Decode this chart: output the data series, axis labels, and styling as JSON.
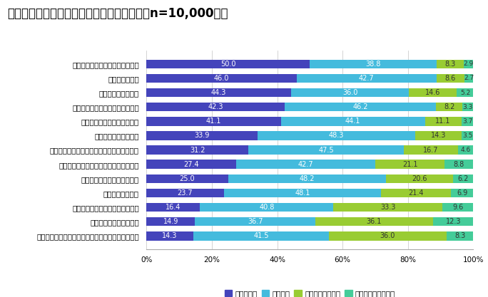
{
  "title": "図表　仕事を選択する際に重要視する観点（n=10,000人）",
  "categories": [
    "安定していて長く続けられること",
    "収入が多いこと",
    "自宅から通えること",
    "自分のやりたいことができること",
    "福利厚生が充実していること",
    "自由な時間が多いこと",
    "自分が身につけた知識や技術が活かせること",
    "子育て、介護等との両立がしやすいこと",
    "能力を高める機会があること",
    "人の役に立つこと",
    "社会的評価の高い仕事であること",
    "実力主義で儲かれること",
    "特別に指示されずに、自分の責任で決められること"
  ],
  "series": {
    "とても重要": [
      50.0,
      46.0,
      44.3,
      42.3,
      41.1,
      33.9,
      31.2,
      27.4,
      25.0,
      23.7,
      16.4,
      14.9,
      14.3
    ],
    "まあ重要": [
      38.8,
      42.7,
      36.0,
      46.2,
      44.1,
      48.3,
      47.5,
      42.7,
      48.2,
      48.1,
      40.8,
      36.7,
      41.5
    ],
    "あまり重要でない": [
      8.3,
      8.6,
      14.6,
      8.2,
      11.1,
      14.3,
      16.7,
      21.1,
      20.6,
      21.4,
      33.3,
      36.1,
      36.0
    ],
    "まったく重要でない": [
      2.9,
      2.7,
      5.2,
      3.3,
      3.7,
      3.5,
      4.6,
      8.8,
      6.2,
      6.9,
      9.6,
      12.3,
      8.3
    ]
  },
  "colors": {
    "とても重要": "#4444bb",
    "まあ重要": "#44bbdd",
    "あまり重要でない": "#99cc33",
    "まったく重要でない": "#44cc99"
  },
  "xlim": [
    0,
    100
  ],
  "xticks": [
    0,
    20,
    40,
    60,
    80,
    100
  ],
  "xticklabels": [
    "0%",
    "20%",
    "40%",
    "60%",
    "80%",
    "100%"
  ],
  "background_color": "#ffffff",
  "bar_height": 0.62,
  "title_fontsize": 12,
  "label_fontsize": 7,
  "tick_fontsize": 7.5,
  "legend_fontsize": 7.5
}
